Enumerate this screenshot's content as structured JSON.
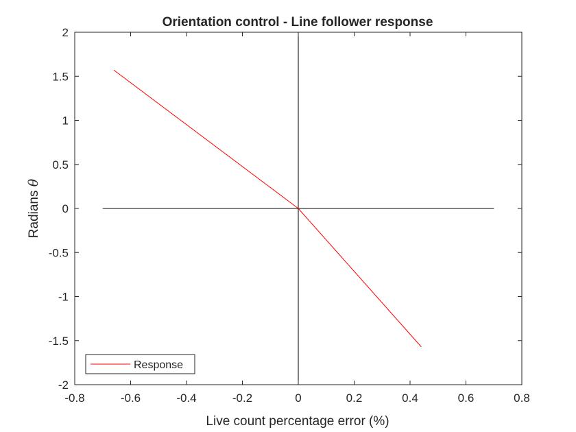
{
  "chart_data": {
    "type": "line",
    "title": "Orientation control - Line follower response",
    "xlabel": "Live count percentage error (%)",
    "ylabel_text": "Radians",
    "ylabel_symbol": "θ",
    "xlim": [
      -0.8,
      0.8
    ],
    "ylim": [
      -2,
      2
    ],
    "x_ticks": [
      -0.8,
      -0.6,
      -0.4,
      -0.2,
      0,
      0.2,
      0.4,
      0.6,
      0.8
    ],
    "x_tick_labels": [
      "-0.8",
      "-0.6",
      "-0.4",
      "-0.2",
      "0",
      "0.2",
      "0.4",
      "0.6",
      "0.8"
    ],
    "y_ticks": [
      -2,
      -1.5,
      -1,
      -0.5,
      0,
      0.5,
      1,
      1.5,
      2
    ],
    "y_tick_labels": [
      "-2",
      "-1.5",
      "-1",
      "-0.5",
      "0",
      "0.5",
      "1",
      "1.5",
      "2"
    ],
    "grid": false,
    "legend_position": "bottom-left",
    "series": [
      {
        "name": "Response",
        "color": "#ff0000",
        "x": [
          -0.66,
          0,
          0.44
        ],
        "y": [
          1.57,
          0,
          -1.57
        ]
      }
    ],
    "reference_lines": {
      "horizontal": {
        "y": 0,
        "x": [
          -0.7,
          0.7
        ],
        "color": "#000000"
      },
      "vertical": {
        "x": 0,
        "y": [
          -2,
          2
        ],
        "color": "#000000"
      }
    }
  }
}
